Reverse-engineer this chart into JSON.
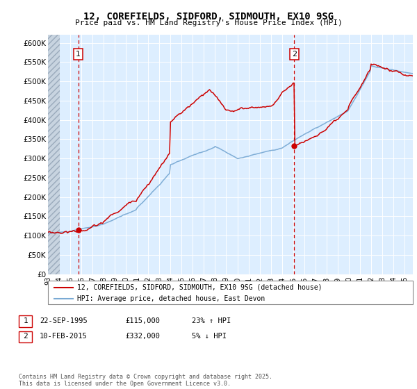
{
  "title": "12, COREFIELDS, SIDFORD, SIDMOUTH, EX10 9SG",
  "subtitle": "Price paid vs. HM Land Registry's House Price Index (HPI)",
  "ylim": [
    0,
    620000
  ],
  "yticks": [
    0,
    50000,
    100000,
    150000,
    200000,
    250000,
    300000,
    350000,
    400000,
    450000,
    500000,
    550000,
    600000
  ],
  "ytick_labels": [
    "£0",
    "£50K",
    "£100K",
    "£150K",
    "£200K",
    "£250K",
    "£300K",
    "£350K",
    "£400K",
    "£450K",
    "£500K",
    "£550K",
    "£600K"
  ],
  "hpi_color": "#7aaad4",
  "sale_color": "#cc0000",
  "dashed_line_color": "#cc0000",
  "plot_bg_color": "#ddeeff",
  "hatch_color": "#b0b8c8",
  "sale1": {
    "date_year": 1995.73,
    "price": 115000,
    "label": "1",
    "annotation": "22-SEP-1995",
    "price_str": "£115,000",
    "hpi_rel": "23% ↑ HPI"
  },
  "sale2": {
    "date_year": 2015.11,
    "price": 332000,
    "label": "2",
    "annotation": "10-FEB-2015",
    "price_str": "£332,000",
    "hpi_rel": "5% ↓ HPI"
  },
  "legend_line1": "12, COREFIELDS, SIDFORD, SIDMOUTH, EX10 9SG (detached house)",
  "legend_line2": "HPI: Average price, detached house, East Devon",
  "footer": "Contains HM Land Registry data © Crown copyright and database right 2025.\nThis data is licensed under the Open Government Licence v3.0.",
  "xmin": 1993.0,
  "xmax": 2025.75
}
